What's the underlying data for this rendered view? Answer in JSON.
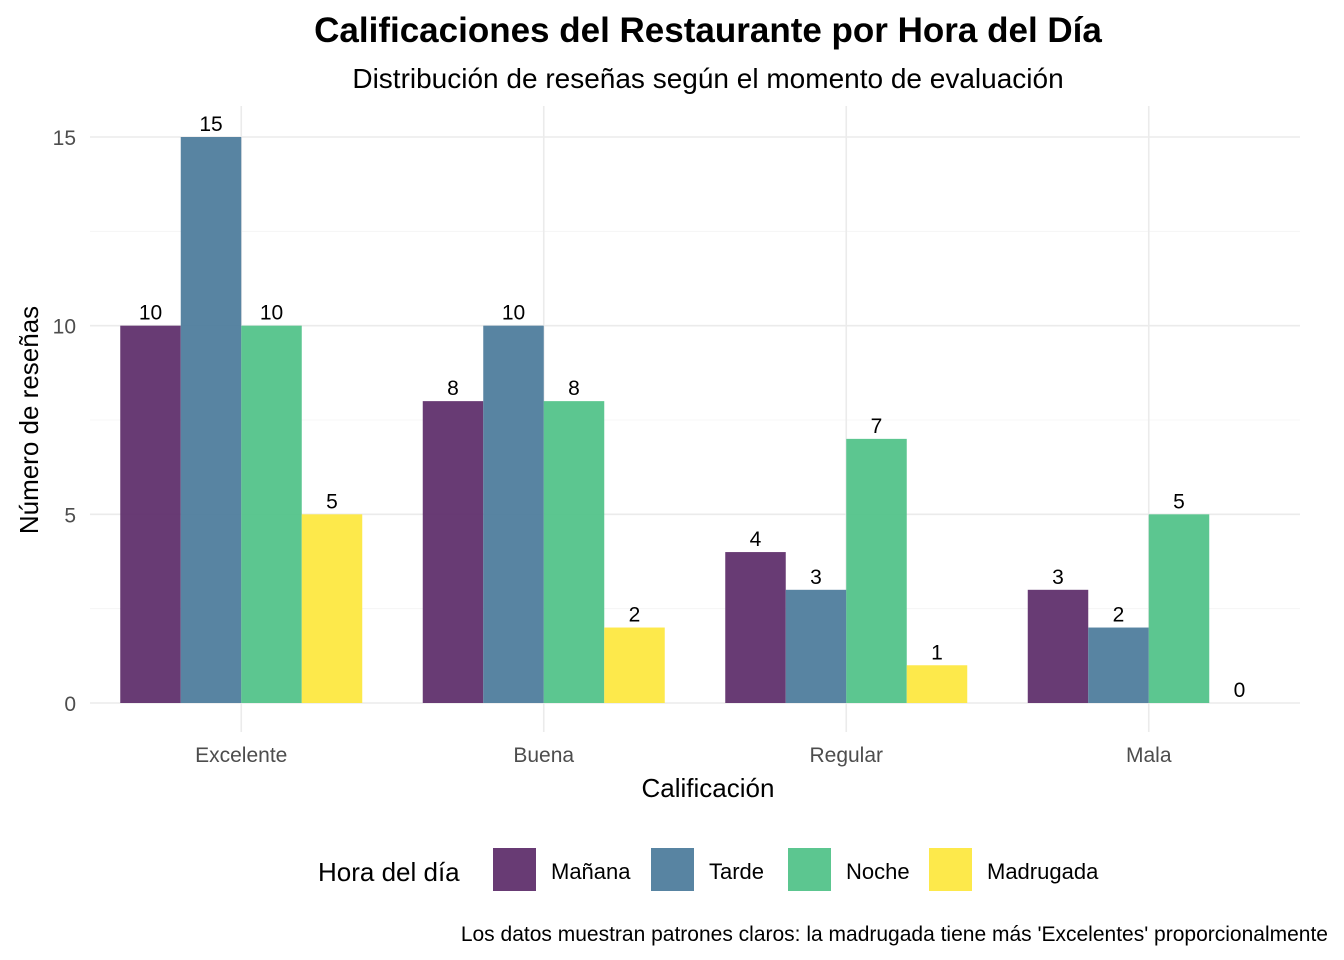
{
  "chart_data": {
    "type": "bar",
    "title": "Calificaciones del Restaurante por Hora del Día",
    "subtitle": "Distribución de reseñas según el momento de evaluación",
    "xlabel": "Calificación",
    "ylabel": "Número de reseñas",
    "caption": "Los datos muestran patrones claros: la madrugada tiene más 'Excelentes' proporcionalmente",
    "categories": [
      "Excelente",
      "Buena",
      "Regular",
      "Mala"
    ],
    "series": [
      {
        "name": "Mañana",
        "color": "#5b2a68",
        "values": [
          10,
          8,
          4,
          3
        ]
      },
      {
        "name": "Tarde",
        "color": "#4a7a9a",
        "values": [
          15,
          10,
          3,
          2
        ]
      },
      {
        "name": "Noche",
        "color": "#4ec187",
        "values": [
          10,
          8,
          7,
          5
        ]
      },
      {
        "name": "Madrugada",
        "color": "#fde73c",
        "values": [
          5,
          2,
          1,
          0
        ]
      }
    ],
    "ylim": [
      0,
      15.8
    ],
    "yticks": [
      0,
      5,
      10,
      15
    ],
    "grid": true,
    "legend": {
      "title": "Hora del día",
      "position": "bottom"
    }
  }
}
